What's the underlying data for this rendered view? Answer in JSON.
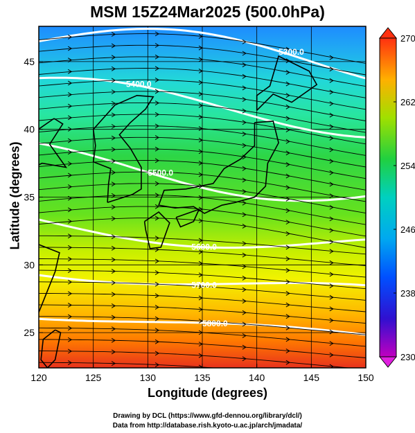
{
  "title": "MSM 15Z24Mar2025 (500.0hPa)",
  "map": {
    "x_label": "Longitude (degrees)",
    "y_label": "Latitude  (degrees)",
    "x_range": [
      120,
      150
    ],
    "y_range": [
      22.4,
      47.6
    ],
    "x_ticks": [
      "120",
      "125",
      "130",
      "135",
      "140",
      "145",
      "150"
    ],
    "y_ticks": [
      "25",
      "30",
      "35",
      "40",
      "45"
    ],
    "contour_labels": [
      "5300.0",
      "5400.0",
      "5500.0",
      "5600.0",
      "5700.0",
      "5800.0"
    ],
    "colorbar": {
      "ticks": [
        "270",
        "262",
        "254",
        "246",
        "238",
        "230"
      ],
      "range": [
        230,
        270
      ]
    },
    "colors": {
      "cold": "#1e8cff",
      "cyan": "#22d8d8",
      "green": "#2dd646",
      "yellow": "#f2f200",
      "orange": "#ff8a00",
      "red": "#e8321c"
    }
  },
  "credits": {
    "line1": "Drawing by DCL (https://www.gfd-dennou.org/library/dcl/)",
    "line2": "Data from http://database.rish.kyoto-u.ac.jp/arch/jmadata/"
  }
}
